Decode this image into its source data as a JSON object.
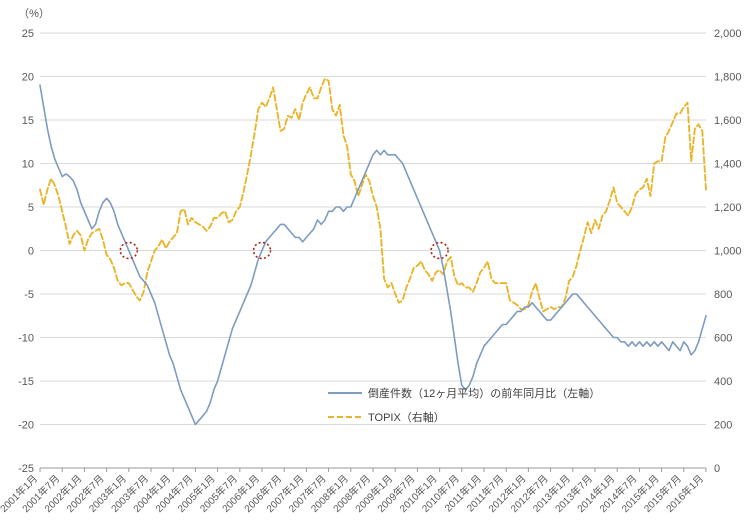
{
  "chart_data": {
    "type": "line",
    "title": "",
    "months_per_tick": 6,
    "x_tick_labels": [
      "2001年1月",
      "2001年7月",
      "2002年1月",
      "2002年7月",
      "2003年1月",
      "2003年7月",
      "2004年1月",
      "2004年7月",
      "2005年1月",
      "2005年7月",
      "2006年1月",
      "2006年7月",
      "2007年1月",
      "2007年7月",
      "2008年1月",
      "2008年7月",
      "2009年1月",
      "2009年7月",
      "2010年1月",
      "2010年7月",
      "2011年1月",
      "2011年7月",
      "2012年1月",
      "2012年7月",
      "2013年1月",
      "2013年7月",
      "2014年1月",
      "2014年7月",
      "2015年1月",
      "2015年7月",
      "2016年1月"
    ],
    "left_axis": {
      "min": -25,
      "max": 25,
      "step": 5,
      "unit": "（%）"
    },
    "right_axis": {
      "min": 0,
      "max": 2000,
      "step": 200
    },
    "grid": true,
    "legend_position": "bottom-center-inside",
    "series": [
      {
        "name": "倒産件数（12ヶ月平均）の前年同月比（左軸）",
        "axis": "left",
        "style": "solid",
        "color": "#7E9CC0",
        "values": [
          19,
          16.5,
          14,
          12,
          10.5,
          9.5,
          8.5,
          8.8,
          8.5,
          8,
          7,
          5.5,
          4.5,
          3.5,
          2.5,
          3,
          4.5,
          5.5,
          6,
          5.5,
          4.5,
          3,
          2,
          1,
          0,
          -1,
          -2,
          -3,
          -3.5,
          -4,
          -5,
          -6,
          -7.5,
          -9,
          -10.5,
          -12,
          -13,
          -14.5,
          -16,
          -17,
          -18,
          -19,
          -20,
          -19.5,
          -19,
          -18.5,
          -17.5,
          -16,
          -15,
          -13.5,
          -12,
          -10.5,
          -9,
          -8,
          -7,
          -6,
          -5,
          -4,
          -2.5,
          -1,
          0,
          1,
          1.5,
          2,
          2.5,
          3,
          3,
          2.5,
          2,
          1.5,
          1.5,
          1,
          1.5,
          2,
          2.5,
          3.5,
          3,
          3.5,
          4.5,
          4.5,
          5,
          5,
          4.5,
          5,
          5,
          6,
          7,
          8,
          9,
          10,
          11,
          11.5,
          11,
          11.5,
          11,
          11,
          11,
          10.5,
          10,
          9,
          8,
          7,
          6,
          5,
          4,
          3,
          2,
          1,
          0,
          -2,
          -4.5,
          -7,
          -10,
          -13,
          -15.5,
          -16,
          -15.5,
          -14.5,
          -13,
          -12,
          -11,
          -10.5,
          -10,
          -9.5,
          -9,
          -8.5,
          -8.5,
          -8,
          -7.5,
          -7,
          -7,
          -6.5,
          -6.5,
          -6,
          -6.5,
          -7,
          -7.5,
          -8,
          -8,
          -7.5,
          -7,
          -6.5,
          -6,
          -5.5,
          -5,
          -5,
          -5.5,
          -6,
          -6.5,
          -7,
          -7.5,
          -8,
          -8.5,
          -9,
          -9.5,
          -10,
          -10,
          -10.5,
          -10.5,
          -11,
          -10.5,
          -11,
          -10.5,
          -11,
          -10.5,
          -11,
          -10.5,
          -11,
          -10.5,
          -11,
          -11.5,
          -10.5,
          -11,
          -11.5,
          -10.5,
          -11,
          -12,
          -11.5,
          -10.5,
          -9,
          -7.5
        ]
      },
      {
        "name": "TOPIX（右軸）",
        "axis": "right",
        "style": "dashed",
        "color": "#E8B62C",
        "values": [
          1280,
          1210,
          1280,
          1330,
          1300,
          1250,
          1180,
          1110,
          1030,
          1070,
          1090,
          1070,
          1000,
          1050,
          1080,
          1090,
          1100,
          1050,
          980,
          960,
          920,
          860,
          840,
          850,
          850,
          820,
          790,
          770,
          810,
          900,
          950,
          1000,
          1020,
          1050,
          1010,
          1040,
          1060,
          1080,
          1180,
          1190,
          1120,
          1150,
          1130,
          1120,
          1110,
          1090,
          1110,
          1150,
          1150,
          1170,
          1180,
          1130,
          1140,
          1180,
          1200,
          1270,
          1350,
          1440,
          1540,
          1650,
          1680,
          1660,
          1700,
          1750,
          1650,
          1550,
          1560,
          1620,
          1610,
          1650,
          1600,
          1680,
          1720,
          1750,
          1700,
          1700,
          1750,
          1790,
          1780,
          1650,
          1620,
          1670,
          1530,
          1480,
          1350,
          1320,
          1250,
          1300,
          1350,
          1320,
          1250,
          1200,
          1100,
          870,
          830,
          850,
          800,
          760,
          770,
          830,
          870,
          920,
          930,
          950,
          910,
          890,
          860,
          900,
          910,
          890,
          950,
          970,
          880,
          840,
          850,
          830,
          830,
          810,
          850,
          900,
          920,
          950,
          870,
          850,
          850,
          850,
          850,
          770,
          760,
          750,
          730,
          730,
          750,
          810,
          850,
          780,
          720,
          730,
          740,
          730,
          740,
          740,
          780,
          860,
          880,
          930,
          1000,
          1060,
          1130,
          1080,
          1140,
          1100,
          1160,
          1180,
          1230,
          1290,
          1220,
          1200,
          1180,
          1160,
          1200,
          1260,
          1280,
          1290,
          1330,
          1250,
          1400,
          1410,
          1410,
          1520,
          1550,
          1590,
          1630,
          1630,
          1660,
          1680,
          1410,
          1560,
          1580,
          1550,
          1280
        ]
      }
    ],
    "annotations": {
      "color": "#B02418",
      "circles": [
        {
          "month_index": 24,
          "value": 0
        },
        {
          "month_index": 60,
          "value": 0
        },
        {
          "month_index": 108,
          "value": 0
        }
      ]
    }
  }
}
